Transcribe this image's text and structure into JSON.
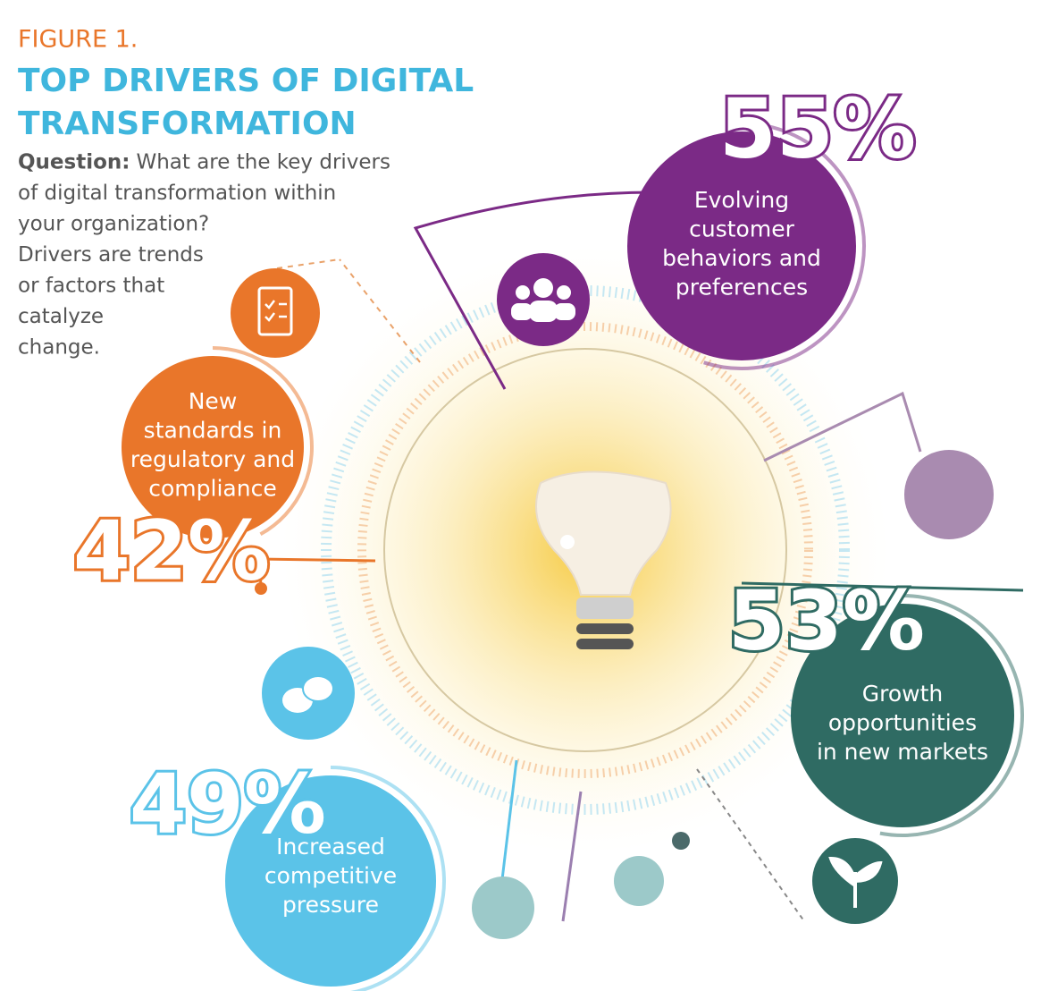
{
  "figure_label": "FIGURE 1.",
  "title": [
    "TOP DRIVERS OF DIGITAL",
    "TRANSFORMATION"
  ],
  "question_label": "Question:",
  "question": [
    "What are the key drivers",
    "of digital transformation within",
    "your organization?",
    "Drivers are trends",
    "or factors that",
    "catalyze",
    "change."
  ],
  "drivers": [
    {
      "label": [
        "Evolving",
        "customer",
        "behaviors and",
        "preferences"
      ],
      "value": 55,
      "value_label": "55%",
      "color": "#7b2a86"
    },
    {
      "label": [
        "New",
        "standards in",
        "regulatory and",
        "compliance"
      ],
      "value": 42,
      "value_label": "42%",
      "color": "#e9762a"
    },
    {
      "label": [
        "Growth",
        "opportunities",
        "in new markets"
      ],
      "value": 53,
      "value_label": "53%",
      "color": "#2f6b63"
    },
    {
      "label": [
        "Increased",
        "competitive",
        "pressure"
      ],
      "value": 49,
      "value_label": "49%",
      "color": "#5bc3e8"
    }
  ]
}
